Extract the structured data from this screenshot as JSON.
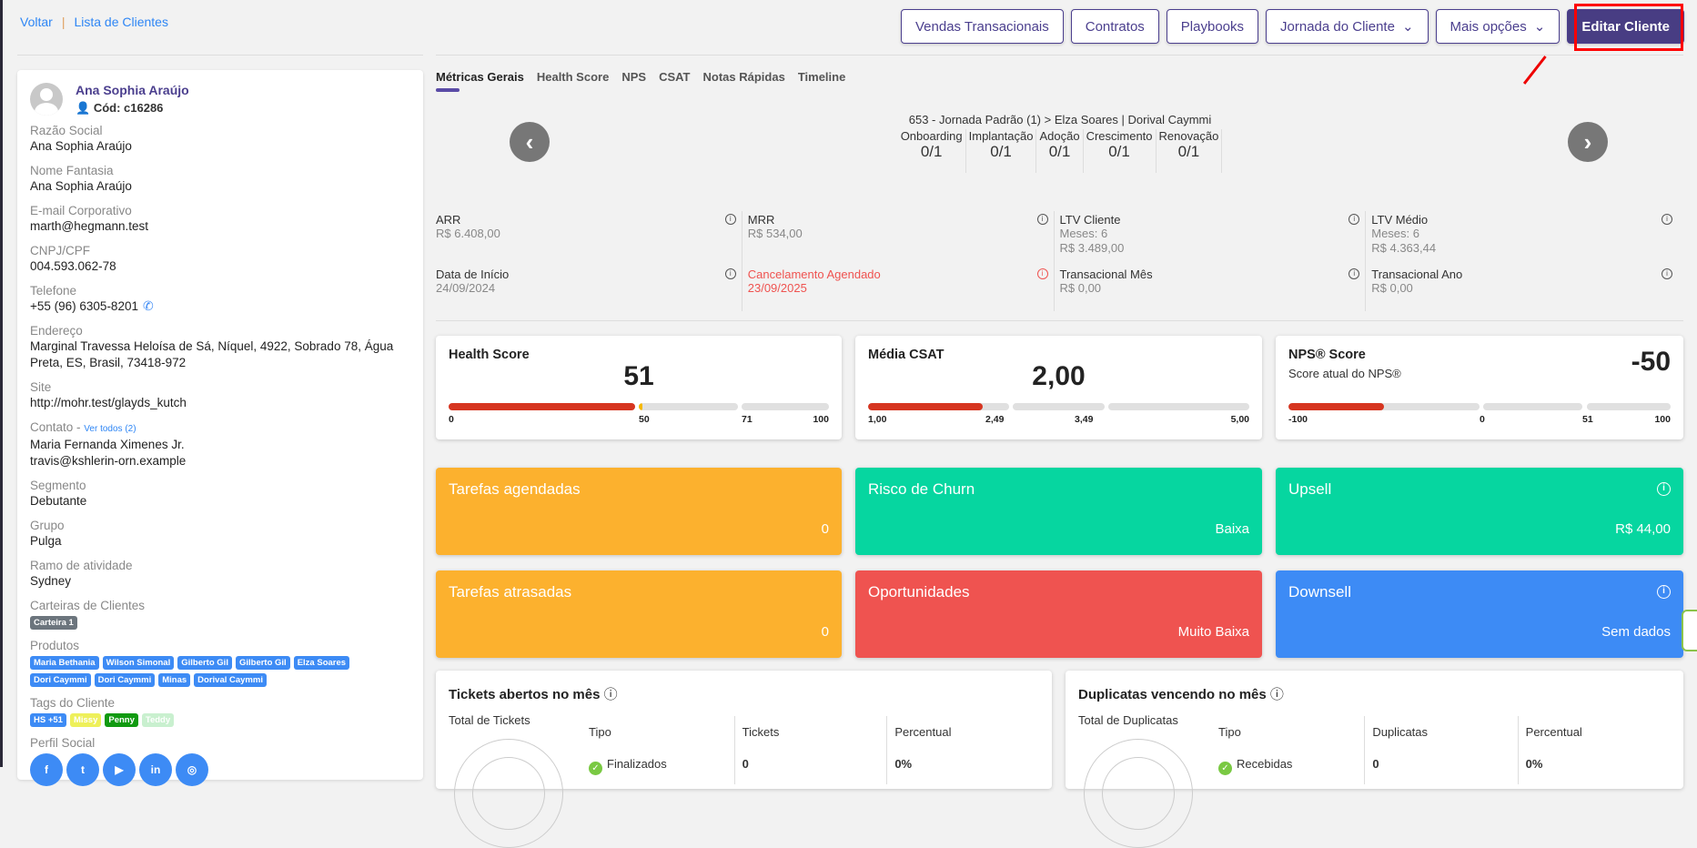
{
  "breadcrumb": {
    "back": "Voltar",
    "sep": "|",
    "list": "Lista de Clientes"
  },
  "toolbar": {
    "vendas": "Vendas Transacionais",
    "contratos": "Contratos",
    "playbooks": "Playbooks",
    "jornada": "Jornada do Cliente",
    "mais": "Mais opções",
    "editar": "Editar Cliente"
  },
  "client": {
    "name": "Ana Sophia Araújo",
    "code": "Cód: c16286",
    "fields": [
      {
        "label": "Razão Social",
        "value": "Ana Sophia Araújo"
      },
      {
        "label": "Nome Fantasia",
        "value": "Ana Sophia Araújo"
      },
      {
        "label": "E-mail Corporativo",
        "value": "marth@hegmann.test"
      },
      {
        "label": "CNPJ/CPF",
        "value": "004.593.062-78"
      },
      {
        "label": "Telefone",
        "value": "+55 (96) 6305-8201"
      },
      {
        "label": "Endereço",
        "value": "Marginal Travessa Heloísa de Sá, Níquel, 4922, Sobrado 78, Água Preta, ES, Brasil, 73418-972"
      },
      {
        "label": "Site",
        "value": "http://mohr.test/glayds_kutch"
      },
      {
        "label": "Contato",
        "link": "Ver todos (2)",
        "value": "Maria Fernanda Ximenes Jr.",
        "value2": "travis@kshlerin-orn.example"
      },
      {
        "label": "Segmento",
        "value": "Debutante"
      },
      {
        "label": "Grupo",
        "value": "Pulga"
      },
      {
        "label": "Ramo de atividade",
        "value": "Sydney"
      }
    ],
    "carteiras_label": "Carteiras de Clientes",
    "carteiras": [
      "Carteira 1"
    ],
    "produtos_label": "Produtos",
    "produtos": [
      "Maria Bethania",
      "Wilson Simonal",
      "Gilberto Gil",
      "Gilberto Gil",
      "Elza Soares",
      "Dori Caymmi",
      "Dori Caymmi",
      "Minas",
      "Dorival Caymmi"
    ],
    "tags_label": "Tags do Cliente",
    "tags": [
      {
        "t": "HS +51",
        "c": "#3d8bf5"
      },
      {
        "t": "Missy",
        "c": "#eef05a"
      },
      {
        "t": "Penny",
        "c": "#109a10"
      },
      {
        "t": "Teddy",
        "c": "#c9f0cf"
      }
    ],
    "social_label": "Perfil Social",
    "social": [
      "f",
      "t",
      "▶",
      "in",
      "◎"
    ]
  },
  "tabs": [
    "Métricas Gerais",
    "Health Score",
    "NPS",
    "CSAT",
    "Notas Rápidas",
    "Timeline"
  ],
  "journey": {
    "title": "653 - Jornada Padrão (1) > Elza Soares | Dorival Caymmi",
    "stages": [
      {
        "n": "Onboarding",
        "v": "0/1"
      },
      {
        "n": "Implantação",
        "v": "0/1"
      },
      {
        "n": "Adoção",
        "v": "0/1"
      },
      {
        "n": "Crescimento",
        "v": "0/1"
      },
      {
        "n": "Renovação",
        "v": "0/1"
      }
    ]
  },
  "metrics": [
    {
      "t": "ARR",
      "v": "R$ 6.408,00"
    },
    {
      "t": "MRR",
      "v": "R$ 534,00"
    },
    {
      "t": "LTV Cliente",
      "v": "Meses: 6",
      "v2": "R$ 3.489,00"
    },
    {
      "t": "LTV Médio",
      "v": "Meses: 6",
      "v2": "R$ 4.363,44"
    },
    {
      "t": "Data de Início",
      "v": "24/09/2024"
    },
    {
      "t": "Cancelamento Agendado",
      "v": "23/09/2025",
      "red": true
    },
    {
      "t": "Transacional Mês",
      "v": "R$ 0,00"
    },
    {
      "t": "Transacional Ano",
      "v": "R$ 0,00"
    }
  ],
  "scores": {
    "health": {
      "title": "Health Score",
      "value": "51",
      "ticks": [
        "0",
        "50",
        "71",
        "100"
      ],
      "fill_pct": 51
    },
    "csat": {
      "title": "Média CSAT",
      "value": "2,00",
      "ticks": [
        "1,00",
        "2,49",
        "3,49",
        "5,00"
      ]
    },
    "nps": {
      "title": "NPS® Score",
      "sub": "Score atual do NPS®",
      "value": "-50",
      "ticks": [
        "-100",
        "0",
        "51",
        "100"
      ]
    }
  },
  "colored": [
    {
      "t": "Tarefas agendadas",
      "v": "0",
      "c": "#fcb12e"
    },
    {
      "t": "Risco de Churn",
      "v": "Baixa",
      "c": "#06d6a0"
    },
    {
      "t": "Upsell",
      "v": "R$ 44,00",
      "c": "#06d6a0",
      "info": true
    },
    {
      "t": "Tarefas atrasadas",
      "v": "0",
      "c": "#fcb12e"
    },
    {
      "t": "Oportunidades",
      "v": "Muito Baixa",
      "c": "#ef5350"
    },
    {
      "t": "Downsell",
      "v": "Sem dados",
      "c": "#3d8bf5",
      "info": true
    }
  ],
  "tickets": {
    "title": "Tickets abertos no mês",
    "total": "Total de Tickets",
    "cols": [
      "Tipo",
      "Tickets",
      "Percentual"
    ],
    "row": [
      "Finalizados",
      "0",
      "0%"
    ]
  },
  "duplicatas": {
    "title": "Duplicatas vencendo no mês",
    "total": "Total de Duplicatas",
    "cols": [
      "Tipo",
      "Duplicatas",
      "Percentual"
    ],
    "row": [
      "Recebidas",
      "0",
      "0%"
    ]
  }
}
